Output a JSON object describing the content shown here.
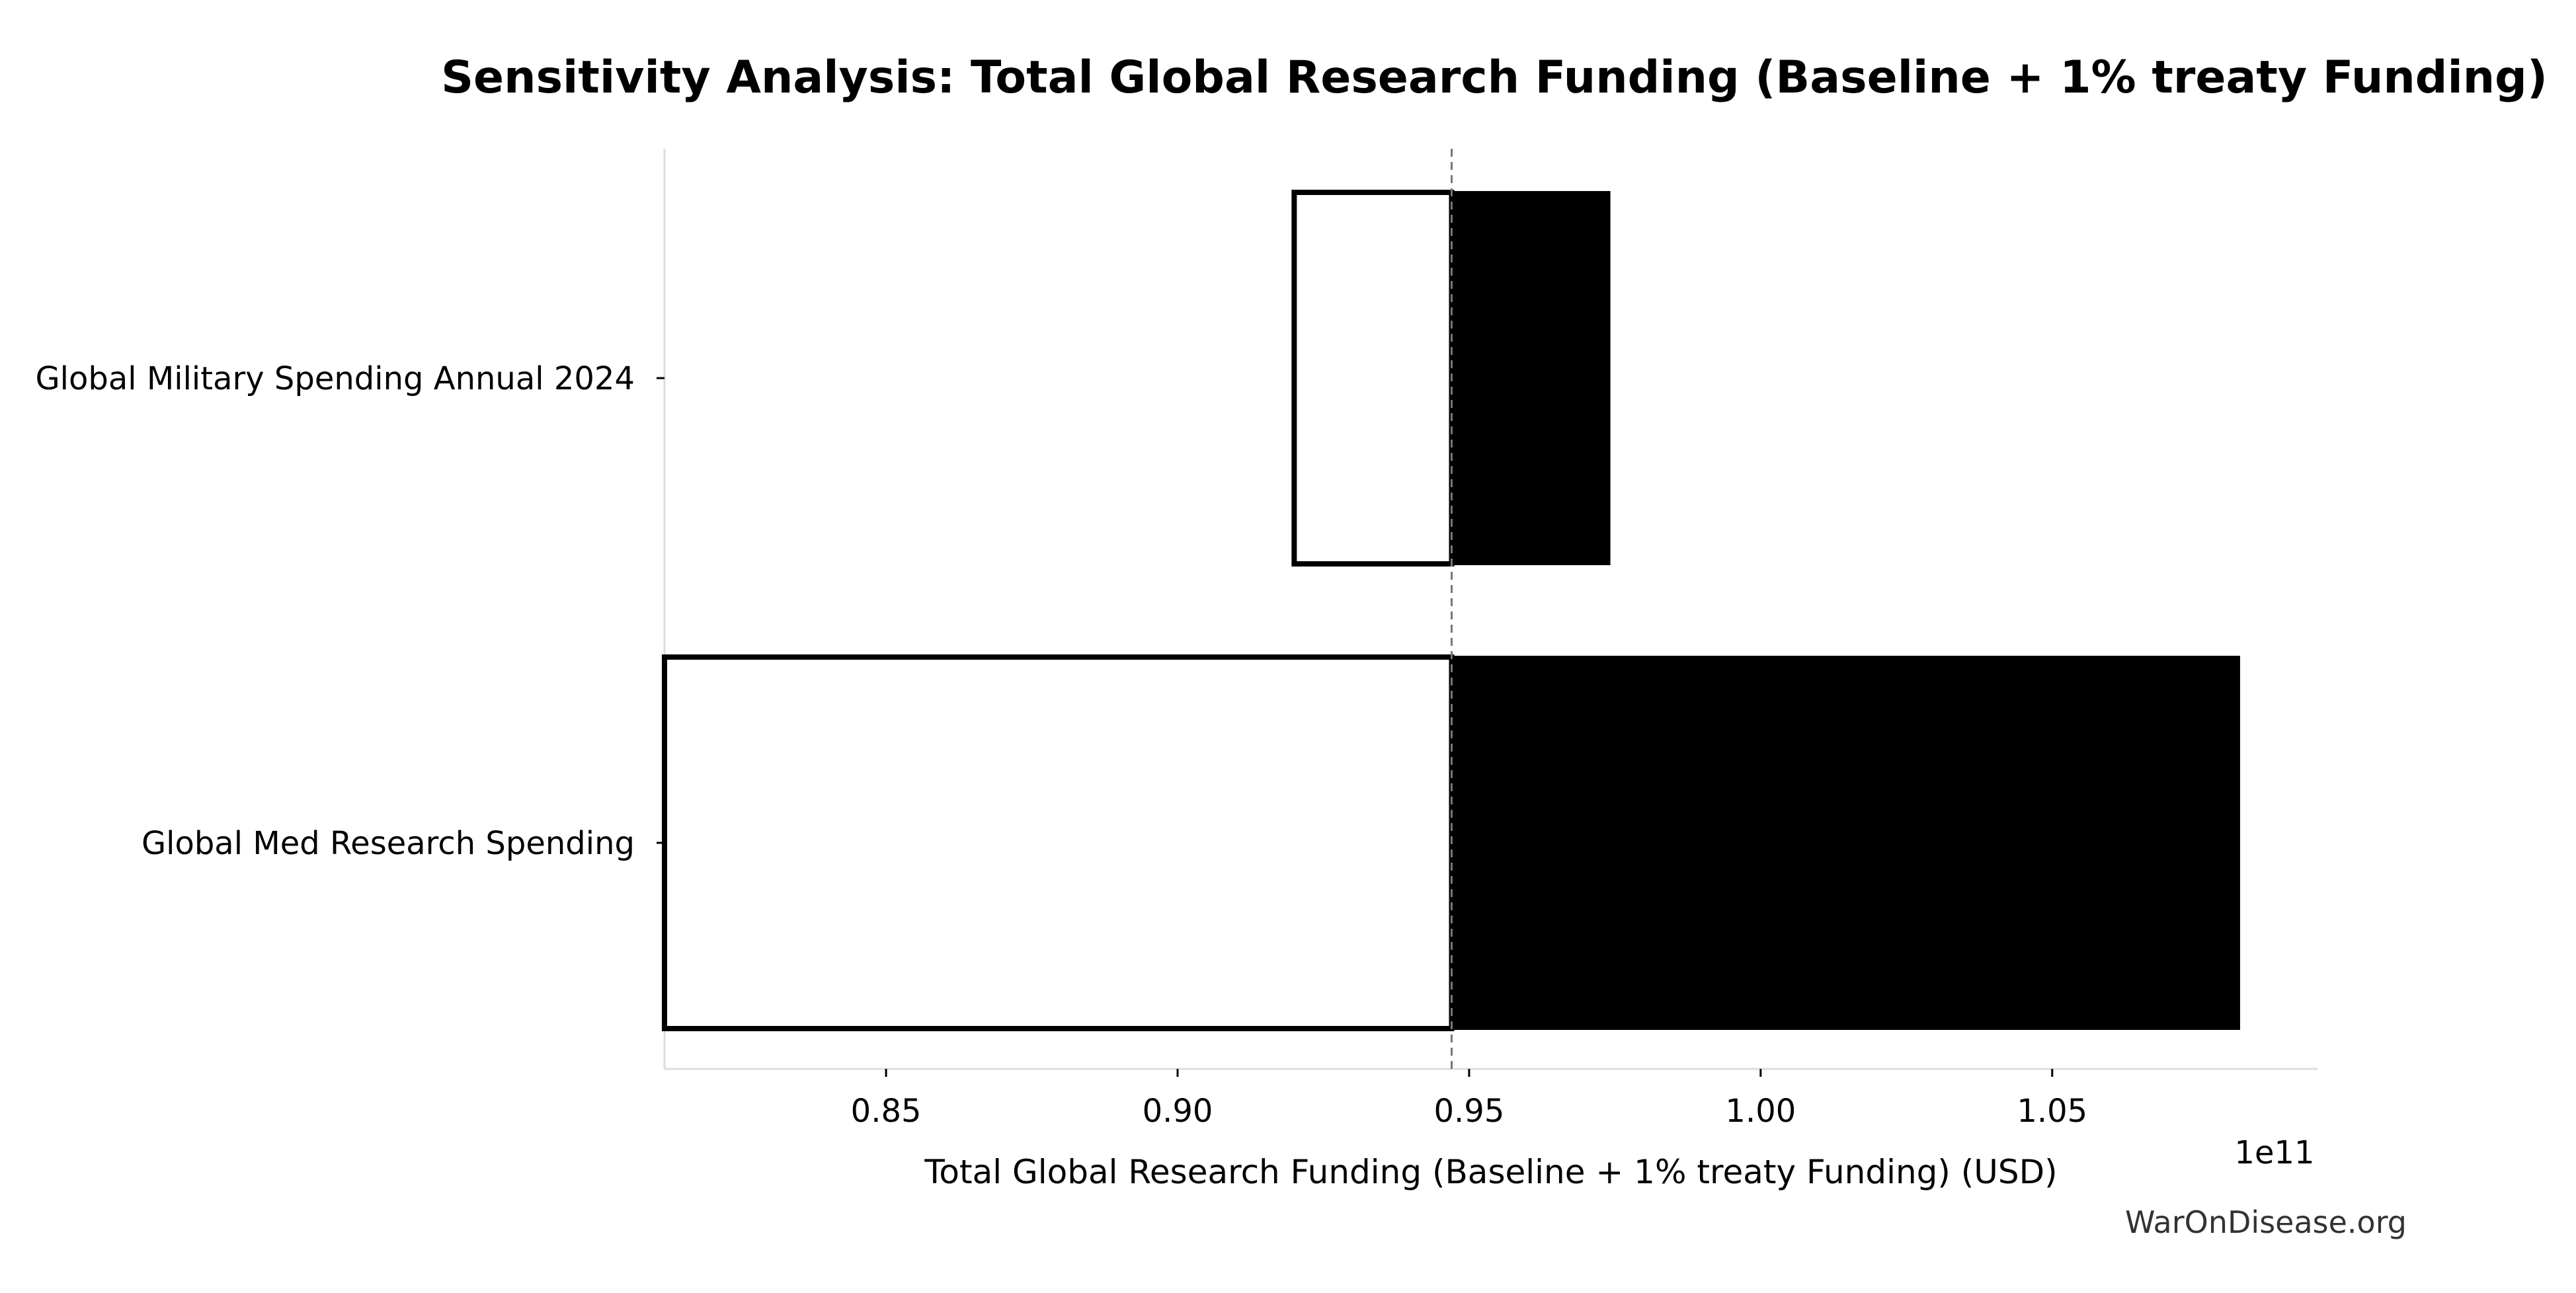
{
  "chart_data": {
    "type": "bar",
    "orientation": "horizontal",
    "subtype": "tornado",
    "title": "Sensitivity Analysis: Total Global Research Funding (Baseline + 1% treaty Funding)",
    "xlabel": "Total Global Research Funding (Baseline + 1% treaty Funding) (USD)",
    "x_offset_label": "1e11",
    "x_scale": 100000000000.0,
    "xlim": [
      0.812,
      1.0955
    ],
    "x_ticks": [
      0.85,
      0.9,
      0.95,
      1.0,
      1.05
    ],
    "x_tick_labels": [
      "0.85",
      "0.90",
      "0.95",
      "1.00",
      "1.05"
    ],
    "baseline": 0.947,
    "categories": [
      "Global Military Spending Annual 2024",
      "Global Med Research Spending"
    ],
    "bars": [
      {
        "category": "Global Military Spending Annual 2024",
        "low": 0.92,
        "high": 0.974
      },
      {
        "category": "Global Med Research Spending",
        "low": 0.812,
        "high": 1.082
      }
    ],
    "colors": {
      "low_fill": "#ffffff",
      "low_stroke": "#000000",
      "high_fill": "#000000",
      "baseline": "#777777",
      "spine": "#dddddd"
    },
    "grid": false,
    "legend": "none"
  },
  "watermark": "WarOnDisease.org"
}
